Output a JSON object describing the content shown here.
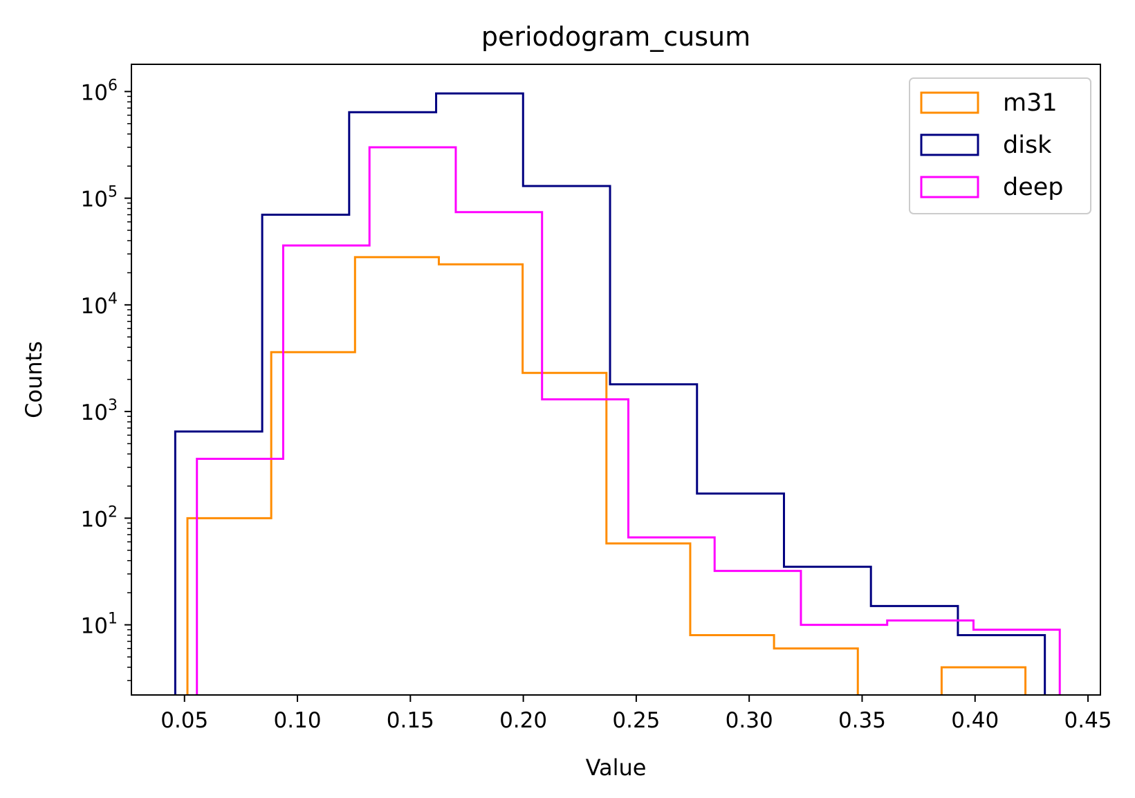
{
  "chart_data": {
    "type": "histogram",
    "title": "periodogram_cusum",
    "xlabel": "Value",
    "ylabel": "Counts",
    "xlim": [
      0.0265,
      0.4555
    ],
    "ylim": [
      2.2,
      1800000
    ],
    "yscale": "log",
    "xticks": [
      0.05,
      0.1,
      0.15,
      0.2,
      0.25,
      0.3,
      0.35,
      0.4,
      0.45
    ],
    "xtick_labels": [
      "0.05",
      "0.10",
      "0.15",
      "0.20",
      "0.25",
      "0.30",
      "0.35",
      "0.40",
      "0.45"
    ],
    "yticks": [
      {
        "value": 10,
        "base": "10",
        "exp": "1"
      },
      {
        "value": 100,
        "base": "10",
        "exp": "2"
      },
      {
        "value": 1000,
        "base": "10",
        "exp": "3"
      },
      {
        "value": 10000,
        "base": "10",
        "exp": "4"
      },
      {
        "value": 100000,
        "base": "10",
        "exp": "5"
      },
      {
        "value": 1000000,
        "base": "10",
        "exp": "6"
      }
    ],
    "legend_position": "top-right",
    "grid": false,
    "series": [
      {
        "name": "m31",
        "color": "#ff8c00",
        "edges": [
          0.0513,
          0.0884,
          0.1255,
          0.1626,
          0.1997,
          0.2368,
          0.2739,
          0.311,
          0.3481,
          0.3852,
          0.4223
        ],
        "counts": [
          100,
          3600,
          28000,
          24000,
          2300,
          58,
          8,
          6,
          0,
          4
        ]
      },
      {
        "name": "disk",
        "color": "#000080",
        "edges": [
          0.0459,
          0.0844,
          0.1229,
          0.1614,
          0.1999,
          0.2384,
          0.2769,
          0.3154,
          0.3539,
          0.3924,
          0.4309
        ],
        "counts": [
          650,
          70000,
          640000,
          960000,
          130000,
          1800,
          170,
          35,
          15,
          8
        ]
      },
      {
        "name": "deep",
        "color": "#ff00ff",
        "edges": [
          0.0555,
          0.0937,
          0.1319,
          0.1701,
          0.2083,
          0.2465,
          0.2847,
          0.3229,
          0.3611,
          0.3993,
          0.4375
        ],
        "counts": [
          360,
          36000,
          300000,
          74000,
          1300,
          66,
          32,
          10,
          11,
          9
        ]
      }
    ]
  }
}
